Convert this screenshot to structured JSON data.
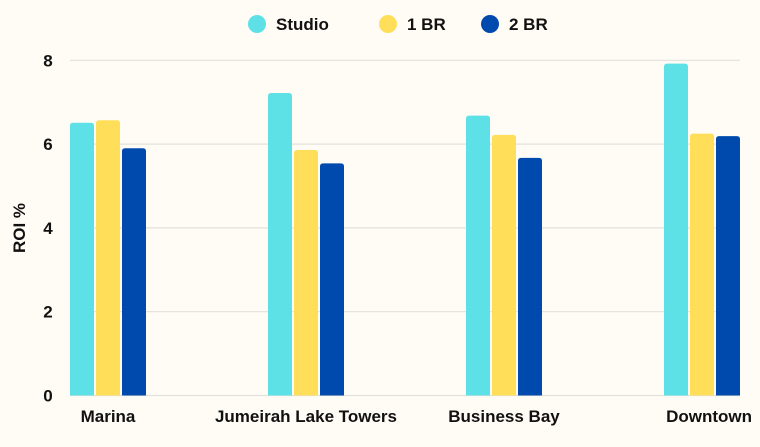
{
  "chart_data": {
    "type": "bar",
    "title": "",
    "xlabel": "",
    "ylabel": "ROI %",
    "ylim": [
      0,
      8
    ],
    "yticks": [
      "0",
      "2",
      "4",
      "6",
      "8"
    ],
    "grid": true,
    "legend_position": "top-center",
    "categories": [
      "Marina",
      "Jumeirah Lake Towers",
      "Business Bay",
      "Downtown"
    ],
    "series": [
      {
        "name": "Studio",
        "color": "#5ee1e6",
        "values": [
          6.51,
          7.22,
          6.68,
          7.92
        ]
      },
      {
        "name": "1 BR",
        "color": "#ffde59",
        "values": [
          6.57,
          5.86,
          6.22,
          6.25
        ]
      },
      {
        "name": "2 BR",
        "color": "#004aad",
        "values": [
          5.9,
          5.54,
          5.67,
          6.19
        ]
      }
    ]
  }
}
